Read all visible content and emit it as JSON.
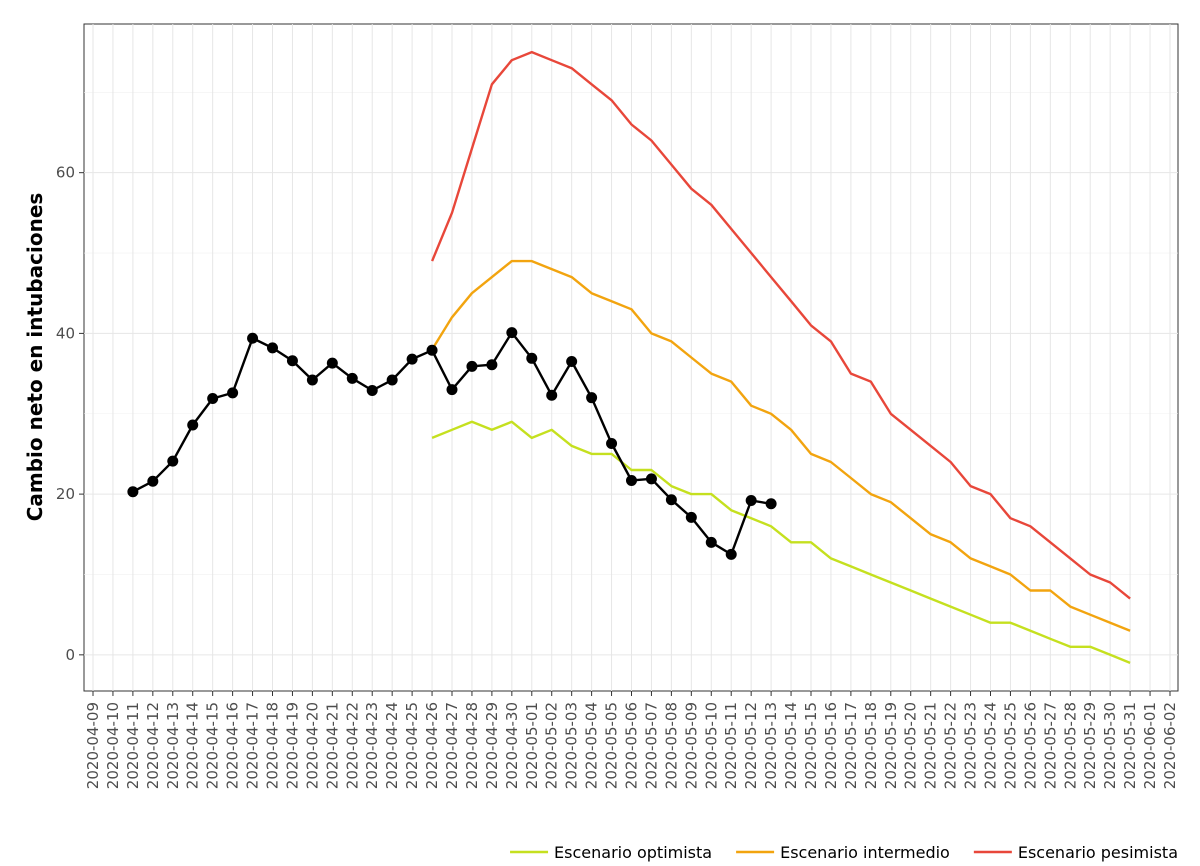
{
  "chart_data": {
    "type": "line",
    "title": "",
    "xlabel": "",
    "ylabel": "Cambio neto en intubaciones",
    "x_ticks": [
      "2020-04-09",
      "2020-04-10",
      "2020-04-11",
      "2020-04-12",
      "2020-04-13",
      "2020-04-14",
      "2020-04-15",
      "2020-04-16",
      "2020-04-17",
      "2020-04-18",
      "2020-04-19",
      "2020-04-20",
      "2020-04-21",
      "2020-04-22",
      "2020-04-23",
      "2020-04-24",
      "2020-04-25",
      "2020-04-26",
      "2020-04-27",
      "2020-04-28",
      "2020-04-29",
      "2020-04-30",
      "2020-05-01",
      "2020-05-02",
      "2020-05-03",
      "2020-05-04",
      "2020-05-05",
      "2020-05-06",
      "2020-05-07",
      "2020-05-08",
      "2020-05-09",
      "2020-05-10",
      "2020-05-11",
      "2020-05-12",
      "2020-05-13",
      "2020-05-14",
      "2020-05-15",
      "2020-05-16",
      "2020-05-17",
      "2020-05-18",
      "2020-05-19",
      "2020-05-20",
      "2020-05-21",
      "2020-05-22",
      "2020-05-23",
      "2020-05-24",
      "2020-05-25",
      "2020-05-26",
      "2020-05-27",
      "2020-05-28",
      "2020-05-29",
      "2020-05-30",
      "2020-05-31",
      "2020-06-01",
      "2020-06-02"
    ],
    "y_ticks": [
      0,
      20,
      40,
      60
    ],
    "xlim": [
      "2020-04-09",
      "2020-06-02"
    ],
    "ylim": [
      -4.5,
      78.5
    ],
    "grid": true,
    "legend_position": "bottom-right",
    "series": [
      {
        "name": "Escenario optimista",
        "color": "#c5e01f",
        "markers": false,
        "x": [
          "2020-04-26",
          "2020-04-27",
          "2020-04-28",
          "2020-04-29",
          "2020-04-30",
          "2020-05-01",
          "2020-05-02",
          "2020-05-03",
          "2020-05-04",
          "2020-05-05",
          "2020-05-06",
          "2020-05-07",
          "2020-05-08",
          "2020-05-09",
          "2020-05-10",
          "2020-05-11",
          "2020-05-12",
          "2020-05-13",
          "2020-05-14",
          "2020-05-15",
          "2020-05-16",
          "2020-05-17",
          "2020-05-18",
          "2020-05-19",
          "2020-05-20",
          "2020-05-21",
          "2020-05-22",
          "2020-05-23",
          "2020-05-24",
          "2020-05-25",
          "2020-05-26",
          "2020-05-27",
          "2020-05-28",
          "2020-05-29",
          "2020-05-30",
          "2020-05-31"
        ],
        "values": [
          27,
          28,
          29,
          28,
          29,
          27,
          28,
          26,
          25,
          25,
          23,
          23,
          21,
          20,
          20,
          18,
          17,
          16,
          14,
          14,
          12,
          11,
          10,
          9,
          8,
          7,
          6,
          5,
          4,
          4,
          3,
          2,
          1,
          1,
          0,
          -1
        ]
      },
      {
        "name": "Escenario intermedio",
        "color": "#f2a40f",
        "markers": false,
        "x": [
          "2020-04-26",
          "2020-04-27",
          "2020-04-28",
          "2020-04-29",
          "2020-04-30",
          "2020-05-01",
          "2020-05-02",
          "2020-05-03",
          "2020-05-04",
          "2020-05-05",
          "2020-05-06",
          "2020-05-07",
          "2020-05-08",
          "2020-05-09",
          "2020-05-10",
          "2020-05-11",
          "2020-05-12",
          "2020-05-13",
          "2020-05-14",
          "2020-05-15",
          "2020-05-16",
          "2020-05-17",
          "2020-05-18",
          "2020-05-19",
          "2020-05-20",
          "2020-05-21",
          "2020-05-22",
          "2020-05-23",
          "2020-05-24",
          "2020-05-25",
          "2020-05-26",
          "2020-05-27",
          "2020-05-28",
          "2020-05-29",
          "2020-05-30",
          "2020-05-31"
        ],
        "values": [
          38,
          42,
          45,
          47,
          49,
          49,
          48,
          47,
          45,
          44,
          43,
          40,
          39,
          37,
          35,
          34,
          31,
          30,
          28,
          25,
          24,
          22,
          20,
          19,
          17,
          15,
          14,
          12,
          11,
          10,
          8,
          8,
          6,
          5,
          4,
          3
        ]
      },
      {
        "name": "Escenario pesimista",
        "color": "#e8473a",
        "markers": false,
        "x": [
          "2020-04-26",
          "2020-04-27",
          "2020-04-28",
          "2020-04-29",
          "2020-04-30",
          "2020-05-01",
          "2020-05-02",
          "2020-05-03",
          "2020-05-04",
          "2020-05-05",
          "2020-05-06",
          "2020-05-07",
          "2020-05-08",
          "2020-05-09",
          "2020-05-10",
          "2020-05-11",
          "2020-05-12",
          "2020-05-13",
          "2020-05-14",
          "2020-05-15",
          "2020-05-16",
          "2020-05-17",
          "2020-05-18",
          "2020-05-19",
          "2020-05-20",
          "2020-05-21",
          "2020-05-22",
          "2020-05-23",
          "2020-05-24",
          "2020-05-25",
          "2020-05-26",
          "2020-05-27",
          "2020-05-28",
          "2020-05-29",
          "2020-05-30",
          "2020-05-31"
        ],
        "values": [
          49,
          55,
          63,
          71,
          74,
          75,
          74,
          73,
          71,
          69,
          66,
          64,
          61,
          58,
          56,
          53,
          50,
          47,
          44,
          41,
          39,
          35,
          34,
          30,
          28,
          26,
          24,
          21,
          20,
          17,
          16,
          14,
          12,
          10,
          9,
          7
        ]
      },
      {
        "name": "",
        "color": "#000000",
        "markers": true,
        "x": [
          "2020-04-11",
          "2020-04-12",
          "2020-04-13",
          "2020-04-14",
          "2020-04-15",
          "2020-04-16",
          "2020-04-17",
          "2020-04-18",
          "2020-04-19",
          "2020-04-20",
          "2020-04-21",
          "2020-04-22",
          "2020-04-23",
          "2020-04-24",
          "2020-04-25",
          "2020-04-26",
          "2020-04-27",
          "2020-04-28",
          "2020-04-29",
          "2020-04-30",
          "2020-05-01",
          "2020-05-02",
          "2020-05-03",
          "2020-05-04",
          "2020-05-05",
          "2020-05-06",
          "2020-05-07",
          "2020-05-08",
          "2020-05-09",
          "2020-05-10",
          "2020-05-11",
          "2020-05-12",
          "2020-05-13"
        ],
        "values": [
          20.3,
          21.6,
          24.1,
          28.6,
          31.9,
          32.6,
          39.4,
          38.2,
          36.6,
          34.2,
          36.3,
          34.4,
          32.9,
          34.2,
          36.8,
          37.9,
          33.0,
          35.9,
          36.1,
          40.1,
          36.9,
          32.3,
          36.5,
          32.0,
          26.3,
          21.7,
          21.9,
          19.3,
          17.1,
          14.0,
          12.5,
          19.2,
          18.8
        ]
      }
    ]
  }
}
